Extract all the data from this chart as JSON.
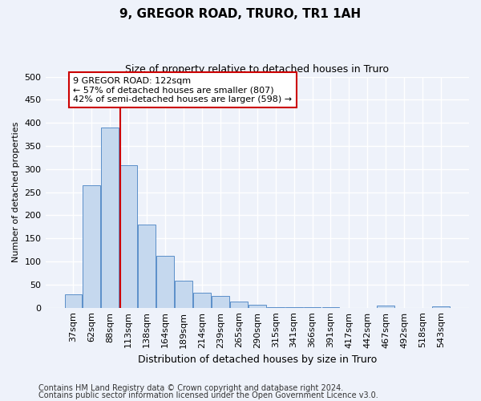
{
  "title1": "9, GREGOR ROAD, TRURO, TR1 1AH",
  "title2": "Size of property relative to detached houses in Truro",
  "xlabel": "Distribution of detached houses by size in Truro",
  "ylabel": "Number of detached properties",
  "categories": [
    "37sqm",
    "62sqm",
    "88sqm",
    "113sqm",
    "138sqm",
    "164sqm",
    "189sqm",
    "214sqm",
    "239sqm",
    "265sqm",
    "290sqm",
    "315sqm",
    "341sqm",
    "366sqm",
    "391sqm",
    "417sqm",
    "442sqm",
    "467sqm",
    "492sqm",
    "518sqm",
    "543sqm"
  ],
  "values": [
    29,
    265,
    390,
    308,
    180,
    113,
    59,
    32,
    25,
    14,
    7,
    2,
    1,
    1,
    1,
    0,
    0,
    5,
    0,
    0,
    3
  ],
  "bar_color": "#c5d8ee",
  "bar_edge_color": "#5b8fc9",
  "vline_x_index": 2.55,
  "annotation_text": "9 GREGOR ROAD: 122sqm\n← 57% of detached houses are smaller (807)\n42% of semi-detached houses are larger (598) →",
  "annotation_box_color": "#ffffff",
  "annotation_box_edge": "#cc0000",
  "vline_color": "#cc0000",
  "ylim": [
    0,
    500
  ],
  "yticks": [
    0,
    50,
    100,
    150,
    200,
    250,
    300,
    350,
    400,
    450,
    500
  ],
  "footer1": "Contains HM Land Registry data © Crown copyright and database right 2024.",
  "footer2": "Contains public sector information licensed under the Open Government Licence v3.0.",
  "bg_color": "#eef2fa",
  "grid_color": "#ffffff",
  "title1_fontsize": 11,
  "title2_fontsize": 9,
  "xlabel_fontsize": 9,
  "ylabel_fontsize": 8,
  "tick_fontsize": 8,
  "footer_fontsize": 7
}
